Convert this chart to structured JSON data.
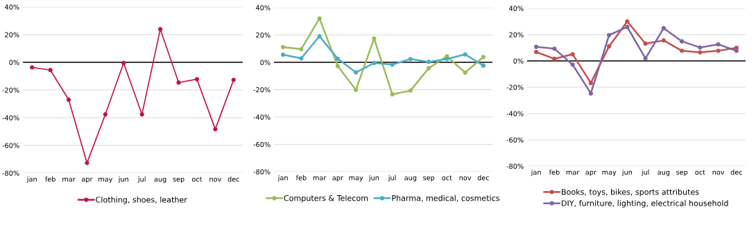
{
  "chart_data": [
    {
      "type": "line",
      "categories": [
        "jan",
        "feb",
        "mar",
        "apr",
        "may",
        "jun",
        "jul",
        "aug",
        "sep",
        "oct",
        "nov",
        "dec"
      ],
      "series": [
        {
          "name": "Clothing, shoes, leather",
          "color": "#c0134e",
          "values": [
            -3.7,
            -5.6,
            -27,
            -72.7,
            -37.6,
            -0.5,
            -37.6,
            23.9,
            -14.6,
            -12.2,
            -48.3,
            -12.7
          ]
        }
      ],
      "ylim": [
        -80,
        40
      ],
      "yticks": [
        {
          "value": -80,
          "label": "-80%"
        },
        {
          "value": -60,
          "label": "-60%"
        },
        {
          "value": -40,
          "label": "-40%"
        },
        {
          "value": -20,
          "label": "-20%"
        },
        {
          "value": 0,
          "label": "0%"
        },
        {
          "value": 20,
          "label": "20%"
        },
        {
          "value": 40,
          "label": "40%"
        }
      ],
      "ref_lines": [
        {
          "axis": "y",
          "value": 0,
          "color": "#000000"
        }
      ],
      "grid": "y",
      "legend": "bottom",
      "marker": "circle",
      "line_style": "solid"
    },
    {
      "type": "line",
      "categories": [
        "jan",
        "feb",
        "mar",
        "apr",
        "may",
        "jun",
        "jul",
        "aug",
        "sep",
        "oct",
        "nov",
        "dec"
      ],
      "series": [
        {
          "name": "Computers & Telecom",
          "color": "#9bbb59",
          "values": [
            11.1,
            9.6,
            32.1,
            -2.7,
            -20.2,
            17.4,
            -23.4,
            -20.7,
            -4.3,
            4.4,
            -7.5,
            3.9
          ]
        },
        {
          "name": "Pharma, medical, cosmetics",
          "color": "#4bacc6",
          "values": [
            5.6,
            2.9,
            19.1,
            2.6,
            -7.4,
            -0.5,
            -1.7,
            2.4,
            0.3,
            2.4,
            5.8,
            -2.4
          ]
        }
      ],
      "ylim": [
        -80,
        40
      ],
      "yticks": [
        {
          "value": -80,
          "label": "-80%"
        },
        {
          "value": -60,
          "label": "-60%"
        },
        {
          "value": -40,
          "label": "-40%"
        },
        {
          "value": -20,
          "label": "-20%"
        },
        {
          "value": 0,
          "label": "0%"
        },
        {
          "value": 20,
          "label": "20%"
        },
        {
          "value": 40,
          "label": "40%"
        }
      ],
      "ref_lines": [
        {
          "axis": "y",
          "value": 0,
          "color": "#000000"
        }
      ],
      "grid": "y",
      "legend": "bottom",
      "marker": "circle",
      "line_style": "solid"
    },
    {
      "type": "line",
      "categories": [
        "jan",
        "feb",
        "mar",
        "apr",
        "may",
        "jun",
        "jul",
        "aug",
        "sep",
        "oct",
        "nov",
        "dec"
      ],
      "series": [
        {
          "name": "Books, toys, bikes, sports attributes",
          "color": "#c0504d",
          "values": [
            6.8,
            1.6,
            5.1,
            -16.8,
            11.1,
            30,
            13.2,
            15.6,
            7.7,
            6.5,
            7.7,
            10
          ]
        },
        {
          "name": "DIY, furniture, lighting, electrical household",
          "color": "#8064a2",
          "values": [
            10.7,
            9.3,
            -2.8,
            -24.7,
            19.6,
            25.8,
            1.9,
            24.9,
            14.9,
            10.2,
            12.6,
            7.7
          ]
        }
      ],
      "ylim": [
        -80,
        40
      ],
      "yticks": [
        {
          "value": -80,
          "label": "-80%"
        },
        {
          "value": -60,
          "label": "-60%"
        },
        {
          "value": -40,
          "label": "-40%"
        },
        {
          "value": -20,
          "label": "-20%"
        },
        {
          "value": 0,
          "label": "0%"
        },
        {
          "value": 20,
          "label": "20%"
        },
        {
          "value": 40,
          "label": "40%"
        }
      ],
      "ref_lines": [
        {
          "axis": "y",
          "value": 0,
          "color": "#000000"
        }
      ],
      "grid": "y",
      "legend": "bottom",
      "marker": "circle",
      "line_style": "solid"
    }
  ]
}
